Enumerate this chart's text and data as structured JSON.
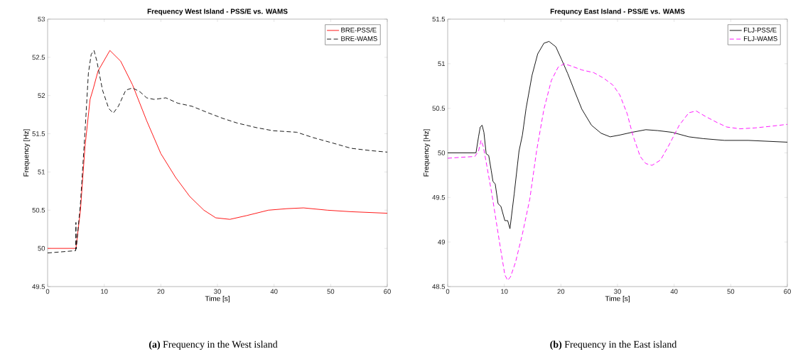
{
  "chart_data": [
    {
      "type": "line",
      "title": "Frequency West Island - PSS/E vs. WAMS",
      "xlabel": "Time [s]",
      "ylabel": "Frequency [Hz]",
      "xlim": [
        0,
        60
      ],
      "ylim": [
        49.5,
        53
      ],
      "xticks": [
        0,
        10,
        20,
        30,
        40,
        50,
        60
      ],
      "yticks": [
        49.5,
        50,
        50.5,
        51,
        51.5,
        52,
        52.5,
        53
      ],
      "legend": "top right",
      "grid": false,
      "annotations": [
        "**(a)** Frequency in the West island"
      ],
      "series": [
        {
          "name": "BRE-PSS/E",
          "color": "#ff0000",
          "line_style": "solid",
          "x": [
            0,
            5,
            5.8,
            6.6,
            7.5,
            8.1,
            8.9,
            11,
            12.9,
            15,
            17.5,
            20,
            22.6,
            25.1,
            27.6,
            29.7,
            32.2,
            35.2,
            39,
            42.3,
            45.2,
            49.4,
            53.6,
            60
          ],
          "values": [
            50,
            50,
            50.5,
            51.33,
            51.95,
            52.1,
            52.32,
            52.59,
            52.45,
            52.14,
            51.67,
            51.24,
            50.93,
            50.68,
            50.5,
            50.4,
            50.38,
            50.43,
            50.5,
            50.52,
            50.53,
            50.5,
            50.48,
            50.46
          ]
        },
        {
          "name": "BRE-WAMS",
          "color": "#000000",
          "line_style": "dashed",
          "x": [
            0,
            4.95,
            5,
            5.05,
            5.8,
            6.6,
            7.2,
            7.7,
            8.2,
            8.7,
            9.7,
            10.8,
            11.6,
            12.5,
            13.8,
            15,
            16.3,
            17.5,
            18.8,
            20.9,
            23,
            25.5,
            28.5,
            31,
            33.5,
            36.9,
            39.8,
            44,
            46.9,
            50.3,
            53.6,
            57,
            60
          ],
          "values": [
            49.94,
            49.97,
            50.34,
            49.99,
            50.59,
            51.52,
            52.29,
            52.54,
            52.59,
            52.45,
            52.07,
            51.83,
            51.77,
            51.86,
            52.07,
            52.1,
            52.05,
            51.97,
            51.95,
            51.97,
            51.9,
            51.86,
            51.77,
            51.7,
            51.64,
            51.58,
            51.54,
            51.52,
            51.45,
            51.38,
            51.31,
            51.28,
            51.26
          ]
        }
      ]
    },
    {
      "type": "line",
      "title": "Frequncy East Island - PSS/E vs. WAMS",
      "xlabel": "Time [s]",
      "ylabel": "Frequency [Hz]",
      "xlim": [
        0,
        60
      ],
      "ylim": [
        48.5,
        51.5
      ],
      "xticks": [
        0,
        10,
        20,
        30,
        40,
        50,
        60
      ],
      "yticks": [
        48.5,
        49,
        49.5,
        50,
        50.5,
        51,
        51.5
      ],
      "legend": "top right",
      "grid": false,
      "annotations": [
        "**(b)** Frequency in the East island"
      ],
      "series": [
        {
          "name": "FLJ-PSS/E",
          "color": "#000000",
          "line_style": "solid",
          "x": [
            0,
            5,
            5.45,
            5.75,
            6.08,
            6.4,
            6.8,
            7.25,
            7.7,
            8,
            8.4,
            8.9,
            9.4,
            10.1,
            10.6,
            11,
            11.75,
            12.6,
            13.2,
            13.85,
            14.9,
            15.9,
            17,
            17.9,
            19.1,
            20.1,
            21.2,
            22.5,
            23.7,
            25.4,
            27.1,
            28.7,
            30.4,
            32.5,
            35,
            37.1,
            39.7,
            42.6,
            45.1,
            48.9,
            53.1,
            60
          ],
          "values": [
            50,
            50,
            50.18,
            50.29,
            50.31,
            50.23,
            49.99,
            49.97,
            49.8,
            49.68,
            49.65,
            49.43,
            49.4,
            49.24,
            49.24,
            49.15,
            49.54,
            50.02,
            50.2,
            50.5,
            50.87,
            51.11,
            51.23,
            51.25,
            51.19,
            51.05,
            50.89,
            50.68,
            50.49,
            50.31,
            50.22,
            50.18,
            50.2,
            50.23,
            50.26,
            50.25,
            50.23,
            50.18,
            50.16,
            50.14,
            50.14,
            50.12
          ]
        },
        {
          "name": "FLJ-WAMS",
          "color": "#ff00ff",
          "line_style": "dashed",
          "x": [
            0,
            4.8,
            5.45,
            5.9,
            6.3,
            6.9,
            7.8,
            8.6,
            9.4,
            10.1,
            10.6,
            11.1,
            11.97,
            13.2,
            14.5,
            15.7,
            17,
            18.3,
            19.5,
            20.6,
            22,
            23.7,
            25.8,
            27.5,
            29.2,
            30.4,
            31.7,
            32.7,
            34,
            35,
            36.1,
            37.6,
            39.2,
            40.9,
            42.6,
            43.9,
            45.5,
            47.6,
            49.3,
            51.6,
            54.3,
            57.3,
            60
          ],
          "values": [
            49.94,
            49.96,
            50.02,
            50.14,
            50.07,
            49.86,
            49.54,
            49.22,
            48.9,
            48.63,
            48.57,
            48.61,
            48.77,
            49.09,
            49.48,
            50.02,
            50.49,
            50.81,
            50.96,
            51.0,
            50.97,
            50.93,
            50.9,
            50.84,
            50.76,
            50.65,
            50.44,
            50.2,
            49.96,
            49.88,
            49.86,
            49.92,
            50.1,
            50.31,
            50.45,
            50.47,
            50.41,
            50.34,
            50.29,
            50.27,
            50.28,
            50.3,
            50.32
          ]
        }
      ]
    }
  ]
}
